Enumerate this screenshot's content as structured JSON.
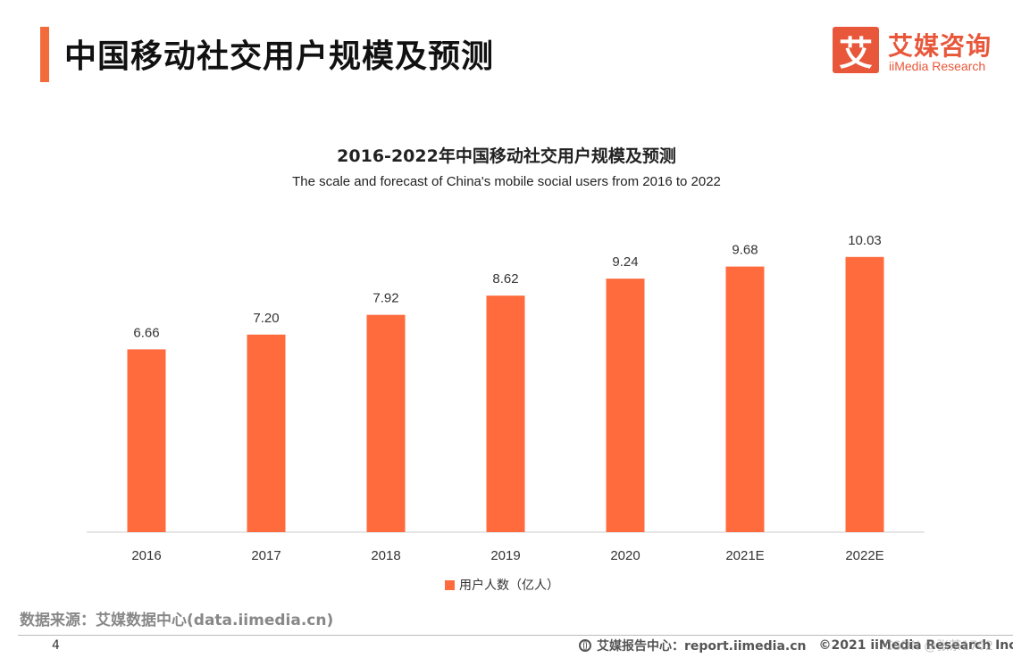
{
  "header": {
    "title": "中国移动社交用户规模及预测",
    "accent_color": "#f26b3a"
  },
  "logo": {
    "mark": "艾",
    "name_cn": "艾媒咨询",
    "name_en": "iiMedia Research",
    "color": "#e8573a"
  },
  "chart_data": {
    "type": "bar",
    "title": "2016-2022年中国移动社交用户规模及预测",
    "subtitle": "The scale and forecast of China's mobile social users from 2016 to 2022",
    "categories": [
      "2016",
      "2017",
      "2018",
      "2019",
      "2020",
      "2021E",
      "2022E"
    ],
    "series": [
      {
        "name": "用户人数（亿人）",
        "values": [
          6.66,
          7.2,
          7.92,
          8.62,
          9.24,
          9.68,
          10.03
        ],
        "labels": [
          "6.66",
          "7.20",
          "7.92",
          "8.62",
          "9.24",
          "9.68",
          "10.03"
        ],
        "color": "#ff6b3d"
      }
    ],
    "xlabel": "",
    "ylabel": "",
    "ylim": [
      0,
      11
    ],
    "grid": false,
    "legend": "bottom-center"
  },
  "footer": {
    "source": "数据来源：艾媒数据中心(data.iimedia.cn)",
    "page_number": "4",
    "report_center": "艾媒报告中心：report.iimedia.cn",
    "copyright": "©2021  iiMedia Research  Inc",
    "watermark": "CSDN @张茶1702"
  }
}
